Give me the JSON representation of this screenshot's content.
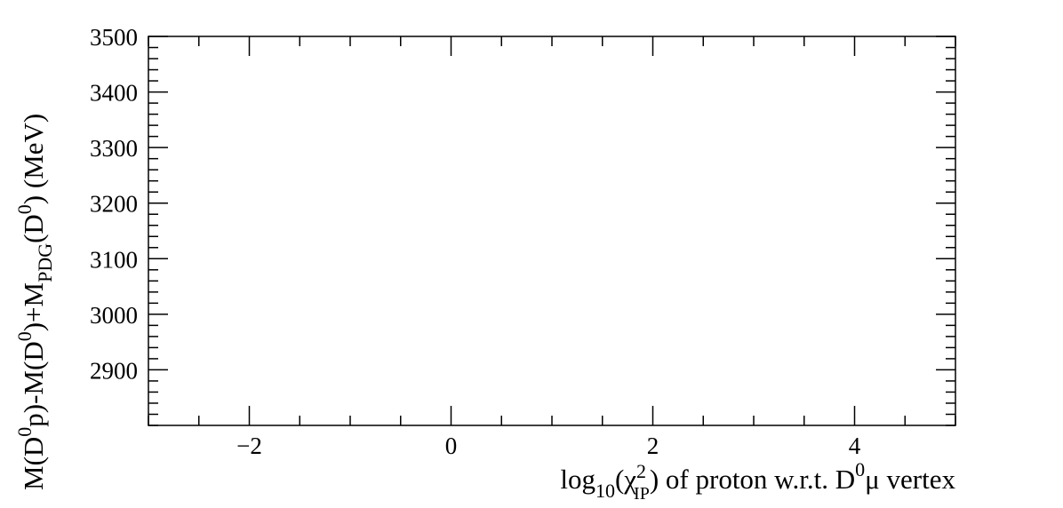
{
  "chart_data": {
    "type": "scatter",
    "title": "",
    "x_axis": {
      "label": "log",
      "label_sub1": "10",
      "label_mid1": "(χ",
      "label_sup": "2",
      "label_sub2": "IP",
      "label_rest": ") of proton w.r.t. D",
      "label_sup2": "0",
      "label_end": "μ vertex",
      "range": [
        -3,
        5
      ],
      "major_ticks": [
        -2,
        0,
        2,
        4
      ],
      "tick_labels": [
        "−2",
        "0",
        "2",
        "4"
      ],
      "minor_step": 0.5
    },
    "y_axis": {
      "label_parts": [
        {
          "t": "M(D",
          "s": "n"
        },
        {
          "t": "0",
          "s": "sup"
        },
        {
          "t": "p)-M(D",
          "s": "n"
        },
        {
          "t": "0",
          "s": "sup"
        },
        {
          "t": ")+M",
          "s": "n"
        },
        {
          "t": "PDG",
          "s": "sub"
        },
        {
          "t": "(D",
          "s": "n"
        },
        {
          "t": "0",
          "s": "sup"
        },
        {
          "t": ") (MeV)",
          "s": "n"
        }
      ],
      "range": [
        2800,
        3500
      ],
      "major_ticks": [
        2900,
        3000,
        3100,
        3200,
        3300,
        3400,
        3500
      ],
      "tick_labels": [
        "2900",
        "3000",
        "3100",
        "3200",
        "3300",
        "3400",
        "3500"
      ],
      "minor_step": 20
    },
    "series": [],
    "grid": false,
    "legend": "none"
  }
}
